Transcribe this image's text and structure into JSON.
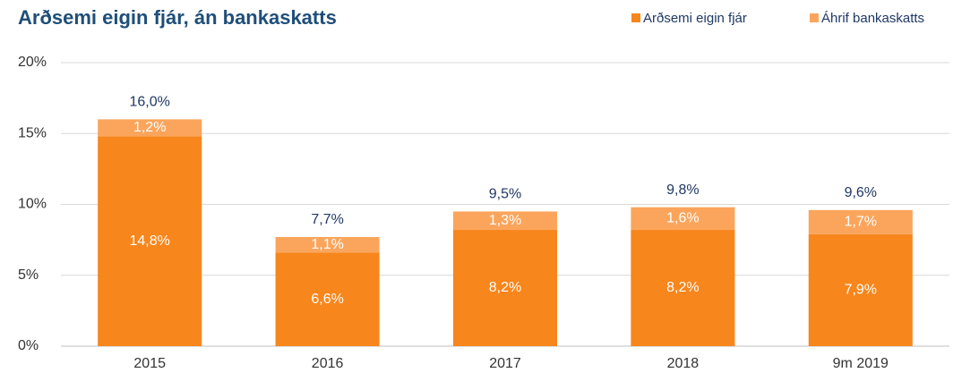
{
  "chart_data": {
    "type": "stacked_bar",
    "title": "Arðsemi eigin fjár, án bankaskatts",
    "categories": [
      "2015",
      "2016",
      "2017",
      "2018",
      "9m 2019"
    ],
    "series": [
      {
        "name": "Arðsemi eigin fjár",
        "color": "#f7861c",
        "values": [
          14.8,
          6.6,
          8.2,
          8.2,
          7.9
        ],
        "value_labels": [
          "14,8%",
          "6,6%",
          "8,2%",
          "8,2%",
          "7,9%"
        ]
      },
      {
        "name": "Áhrif bankaskatts",
        "color": "#fba55c",
        "values": [
          1.2,
          1.1,
          1.3,
          1.6,
          1.7
        ],
        "value_labels": [
          "1,2%",
          "1,1%",
          "1,3%",
          "1,6%",
          "1,7%"
        ]
      }
    ],
    "totals": [
      16.0,
      7.7,
      9.5,
      9.8,
      9.6
    ],
    "total_labels": [
      "16,0%",
      "7,7%",
      "9,5%",
      "9,8%",
      "9,6%"
    ],
    "ylim": [
      0,
      20
    ],
    "yticks": [
      {
        "value": 0,
        "label": "0%"
      },
      {
        "value": 5,
        "label": "5%"
      },
      {
        "value": 10,
        "label": "10%"
      },
      {
        "value": 15,
        "label": "15%"
      },
      {
        "value": 20,
        "label": "20%"
      }
    ],
    "grid": true,
    "legend": "top-right"
  }
}
